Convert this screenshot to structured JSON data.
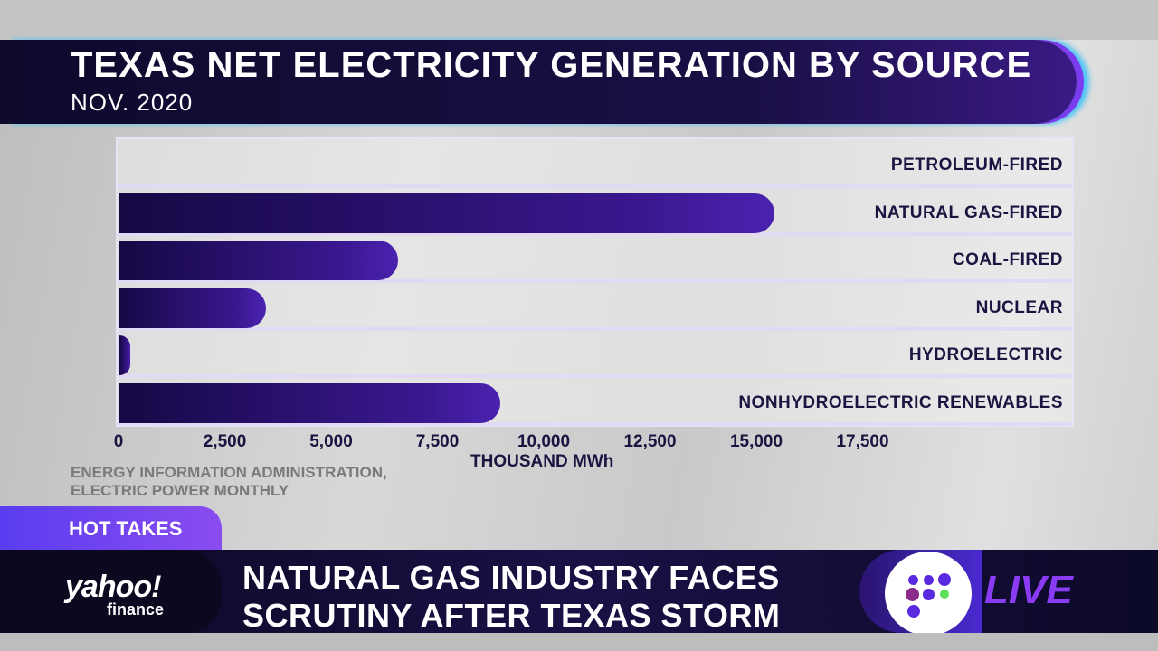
{
  "header": {
    "title": "TEXAS NET ELECTRICITY GENERATION BY SOURCE",
    "subtitle": "NOV. 2020"
  },
  "chart_data": {
    "type": "bar",
    "orientation": "horizontal",
    "categories": [
      "PETROLEUM-FIRED",
      "NATURAL GAS-FIRED",
      "COAL-FIRED",
      "NUCLEAR",
      "HYDROELECTRIC",
      "NONHYDROELECTRIC RENEWABLES"
    ],
    "values": [
      20,
      15400,
      6550,
      3450,
      100,
      8950
    ],
    "xlabel": "THOUSAND MWh",
    "xlim": [
      0,
      22500
    ],
    "ticks": [
      "0",
      "2,500",
      "5,000",
      "7,500",
      "10,000",
      "12,500",
      "15,000",
      "17,500"
    ],
    "tick_values": [
      0,
      2500,
      5000,
      7500,
      10000,
      12500,
      15000,
      17500
    ],
    "bar_color": "#2a1270"
  },
  "source": {
    "line1": "ENERGY INFORMATION ADMINISTRATION,",
    "line2": "ELECTRIC POWER MONTHLY"
  },
  "lower_third": {
    "tag": "HOT TAKES",
    "brand": "yahoo!",
    "brand_sub": "finance",
    "headline_1": "NATURAL GAS INDUSTRY FACES",
    "headline_2": "SCRUTINY AFTER TEXAS STORM",
    "live": "LIVE"
  }
}
